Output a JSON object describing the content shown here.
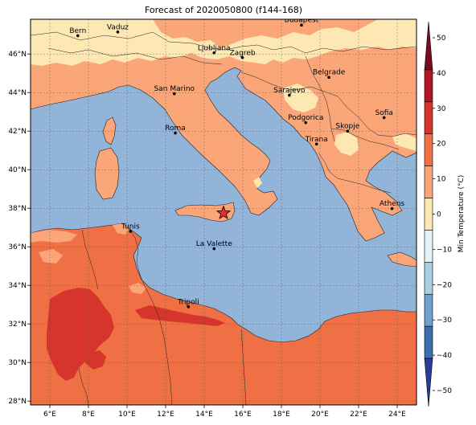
{
  "title": "Forecast of 2020050800 (f144-168)",
  "map": {
    "lon_range": [
      5.0,
      25.0
    ],
    "lat_range": [
      27.8,
      47.8
    ],
    "lon_ticks": [
      "6°E",
      "8°E",
      "10°E",
      "12°E",
      "14°E",
      "16°E",
      "18°E",
      "20°E",
      "22°E",
      "24°E"
    ],
    "lat_ticks": [
      "28°N",
      "30°N",
      "32°N",
      "34°N",
      "36°N",
      "38°N",
      "40°N",
      "42°N",
      "44°N",
      "46°N"
    ],
    "grid": true,
    "sea_color": "#91b4d8",
    "marker": {
      "name": "star",
      "lon": 15.0,
      "lat": 37.75,
      "color": "#e8302a"
    }
  },
  "cities": [
    {
      "name": "Bern",
      "lon": 7.45,
      "lat": 46.95
    },
    {
      "name": "Vaduz",
      "lon": 9.52,
      "lat": 47.14
    },
    {
      "name": "Budapest",
      "lon": 19.04,
      "lat": 47.5
    },
    {
      "name": "Ljubljana",
      "lon": 14.51,
      "lat": 46.06
    },
    {
      "name": "Zagreb",
      "lon": 15.98,
      "lat": 45.81
    },
    {
      "name": "San Marino",
      "lon": 12.45,
      "lat": 43.94
    },
    {
      "name": "Belgrade",
      "lon": 20.46,
      "lat": 44.79
    },
    {
      "name": "Sarajevo",
      "lon": 18.41,
      "lat": 43.86
    },
    {
      "name": "Roma",
      "lon": 12.5,
      "lat": 41.9
    },
    {
      "name": "Podgorica",
      "lon": 19.26,
      "lat": 42.44
    },
    {
      "name": "Skopje",
      "lon": 21.43,
      "lat": 42.0
    },
    {
      "name": "Sofia",
      "lon": 23.32,
      "lat": 42.7
    },
    {
      "name": "Tirana",
      "lon": 19.82,
      "lat": 41.33
    },
    {
      "name": "Athens",
      "lon": 23.73,
      "lat": 37.98
    },
    {
      "name": "Tunis",
      "lon": 10.18,
      "lat": 36.8
    },
    {
      "name": "La Valette",
      "lon": 14.51,
      "lat": 35.9
    },
    {
      "name": "Tripoli",
      "lon": 13.18,
      "lat": 32.89
    }
  ],
  "colorbar": {
    "label": "Min Temperature (°C)",
    "ticks": [
      "50",
      "40",
      "30",
      "20",
      "10",
      "0",
      "−10",
      "−20",
      "−30",
      "−40",
      "−50"
    ],
    "colors": [
      "#7a0b20",
      "#b11825",
      "#d7352b",
      "#ee7044",
      "#fba679",
      "#fde7b2",
      "#e5f3f6",
      "#a9cfe2",
      "#6fa1cb",
      "#3c6eb0",
      "#2a3d98"
    ]
  }
}
